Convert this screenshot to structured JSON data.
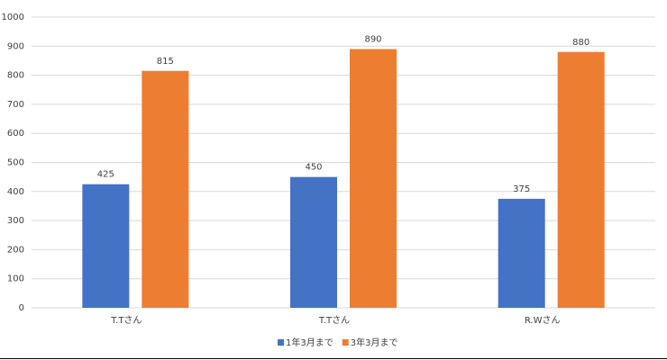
{
  "chart_data": {
    "type": "bar",
    "categories": [
      "T.Tさん",
      "T.Tさん",
      "R.Wさん"
    ],
    "series": [
      {
        "name": "1年3月まで",
        "color": "#4472c4",
        "values": [
          425,
          450,
          375
        ]
      },
      {
        "name": "3年3月まで",
        "color": "#ed7d31",
        "values": [
          815,
          890,
          880
        ]
      }
    ],
    "ylim": [
      0,
      1000
    ],
    "yticks": [
      0,
      100,
      200,
      300,
      400,
      500,
      600,
      700,
      800,
      900,
      1000
    ],
    "grid": true,
    "legend": "bottom",
    "data_labels": true
  }
}
